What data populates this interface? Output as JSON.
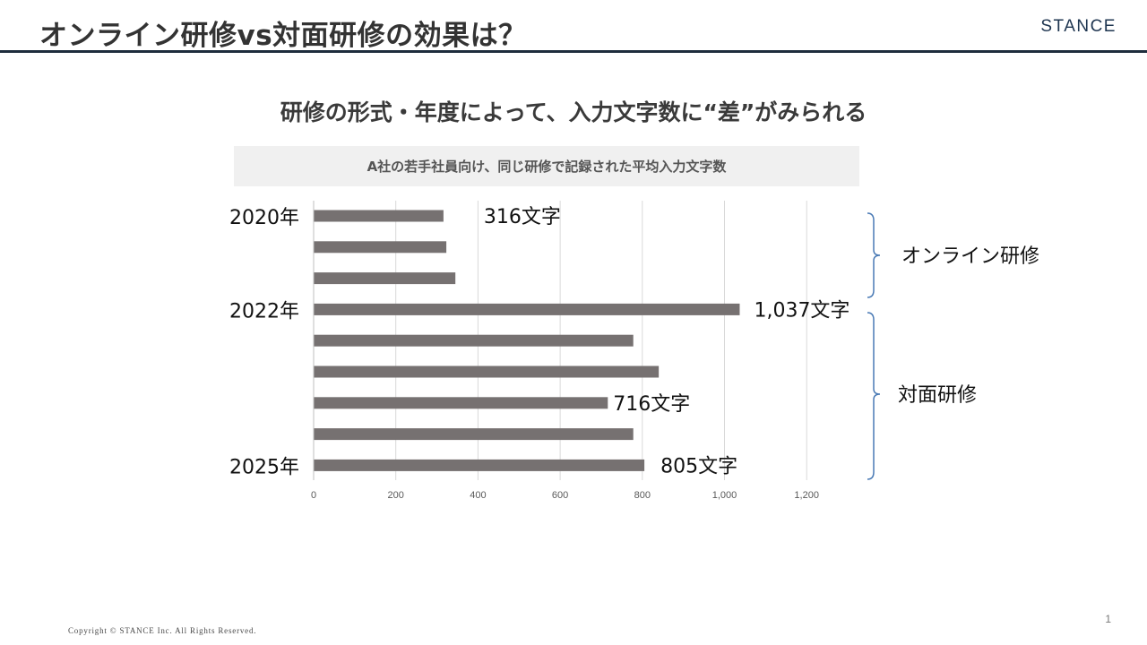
{
  "header": {
    "title": "オンライン研修vs対面研修の効果は？",
    "logo": "STANCE"
  },
  "subtitle": "研修の形式・年度によって、入力文字数に“差”がみられる",
  "caption": "A社の若手社員向け、同じ研修で記録された平均入力文字数",
  "chart_data": {
    "type": "bar",
    "orientation": "horizontal",
    "categories": [
      "2020年",
      "",
      "",
      "2022年",
      "",
      "",
      "",
      "",
      "2025年"
    ],
    "values": [
      316,
      323,
      345,
      1037,
      778,
      840,
      716,
      778,
      805
    ],
    "data_labels": [
      "316文字",
      "",
      "",
      "1,037文字",
      "",
      "",
      "716文字",
      "",
      "805文字"
    ],
    "xlim": [
      0,
      1200
    ],
    "x_ticks": [
      "0",
      "200",
      "400",
      "600",
      "800",
      "1,000",
      "1,200"
    ],
    "grid": true,
    "bar_color": "#767171",
    "groups": [
      {
        "label": "オンライン研修",
        "from_index": 0,
        "to_index": 2
      },
      {
        "label": "対面研修",
        "from_index": 3,
        "to_index": 8
      }
    ],
    "bracket_color": "#4a7ab5"
  },
  "footer": {
    "copyright": "Copyright © STANCE Inc. All Rights Reserved.",
    "page_number": "1"
  }
}
